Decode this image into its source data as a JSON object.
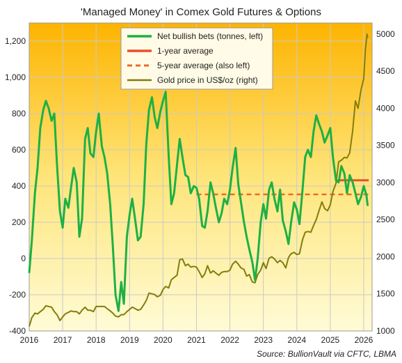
{
  "chart_data": {
    "type": "line",
    "title": "'Managed Money' in Comex Gold Futures & Options",
    "source": "Source: BullionVault via CFTC, LBMA",
    "x_ticks": [
      "2016",
      "2017",
      "2018",
      "2019",
      "2020",
      "2021",
      "2022",
      "2023",
      "2024",
      "2025",
      "2026"
    ],
    "xlim": [
      2016.0,
      2026.25
    ],
    "left_axis": {
      "ylim": [
        -400,
        1300
      ],
      "ticks": [
        -400,
        -200,
        0,
        200,
        400,
        600,
        800,
        1000,
        1200
      ],
      "tick_labels": [
        "-400",
        "-200",
        "0",
        "200",
        "400",
        "600",
        "800",
        "1,000",
        "1,200"
      ]
    },
    "right_axis": {
      "ylim": [
        1000,
        5150
      ],
      "ticks": [
        1000,
        1500,
        2000,
        2500,
        3000,
        3500,
        4000,
        4500,
        5000
      ],
      "tick_labels": [
        "1000",
        "1500",
        "2000",
        "2500",
        "3000",
        "3500",
        "4000",
        "4500",
        "5000"
      ]
    },
    "grid": true,
    "legend_position": "top-center",
    "series": [
      {
        "name": "Net bullish bets (tonnes, left)",
        "axis": "left",
        "color": "#1db044",
        "points": [
          [
            2016.0,
            -80
          ],
          [
            2016.08,
            100
          ],
          [
            2016.17,
            360
          ],
          [
            2016.25,
            500
          ],
          [
            2016.33,
            720
          ],
          [
            2016.42,
            820
          ],
          [
            2016.5,
            870
          ],
          [
            2016.58,
            830
          ],
          [
            2016.67,
            760
          ],
          [
            2016.75,
            800
          ],
          [
            2016.83,
            520
          ],
          [
            2016.92,
            260
          ],
          [
            2017.0,
            170
          ],
          [
            2017.08,
            330
          ],
          [
            2017.17,
            280
          ],
          [
            2017.25,
            390
          ],
          [
            2017.33,
            500
          ],
          [
            2017.42,
            420
          ],
          [
            2017.5,
            120
          ],
          [
            2017.58,
            220
          ],
          [
            2017.67,
            660
          ],
          [
            2017.75,
            720
          ],
          [
            2017.83,
            580
          ],
          [
            2017.92,
            560
          ],
          [
            2018.0,
            700
          ],
          [
            2018.08,
            800
          ],
          [
            2018.17,
            620
          ],
          [
            2018.25,
            560
          ],
          [
            2018.33,
            470
          ],
          [
            2018.42,
            300
          ],
          [
            2018.5,
            70
          ],
          [
            2018.58,
            -200
          ],
          [
            2018.67,
            -290
          ],
          [
            2018.75,
            -130
          ],
          [
            2018.83,
            -250
          ],
          [
            2018.92,
            120
          ],
          [
            2019.0,
            240
          ],
          [
            2019.08,
            330
          ],
          [
            2019.17,
            210
          ],
          [
            2019.25,
            100
          ],
          [
            2019.33,
            120
          ],
          [
            2019.42,
            300
          ],
          [
            2019.5,
            630
          ],
          [
            2019.58,
            820
          ],
          [
            2019.67,
            890
          ],
          [
            2019.75,
            780
          ],
          [
            2019.83,
            720
          ],
          [
            2019.92,
            810
          ],
          [
            2020.0,
            870
          ],
          [
            2020.08,
            920
          ],
          [
            2020.17,
            560
          ],
          [
            2020.25,
            300
          ],
          [
            2020.33,
            360
          ],
          [
            2020.42,
            520
          ],
          [
            2020.5,
            660
          ],
          [
            2020.58,
            560
          ],
          [
            2020.67,
            460
          ],
          [
            2020.75,
            450
          ],
          [
            2020.83,
            360
          ],
          [
            2020.92,
            400
          ],
          [
            2021.0,
            390
          ],
          [
            2021.08,
            330
          ],
          [
            2021.17,
            180
          ],
          [
            2021.25,
            170
          ],
          [
            2021.33,
            260
          ],
          [
            2021.42,
            420
          ],
          [
            2021.5,
            360
          ],
          [
            2021.58,
            280
          ],
          [
            2021.67,
            200
          ],
          [
            2021.75,
            250
          ],
          [
            2021.83,
            330
          ],
          [
            2021.92,
            300
          ],
          [
            2022.0,
            380
          ],
          [
            2022.08,
            500
          ],
          [
            2022.17,
            610
          ],
          [
            2022.25,
            410
          ],
          [
            2022.33,
            310
          ],
          [
            2022.42,
            200
          ],
          [
            2022.5,
            120
          ],
          [
            2022.58,
            50
          ],
          [
            2022.67,
            -20
          ],
          [
            2022.75,
            -120
          ],
          [
            2022.83,
            0
          ],
          [
            2022.92,
            200
          ],
          [
            2023.0,
            300
          ],
          [
            2023.08,
            220
          ],
          [
            2023.17,
            380
          ],
          [
            2023.25,
            420
          ],
          [
            2023.33,
            330
          ],
          [
            2023.42,
            260
          ],
          [
            2023.5,
            380
          ],
          [
            2023.58,
            210
          ],
          [
            2023.67,
            150
          ],
          [
            2023.75,
            80
          ],
          [
            2023.83,
            200
          ],
          [
            2023.92,
            310
          ],
          [
            2024.0,
            270
          ],
          [
            2024.08,
            190
          ],
          [
            2024.17,
            380
          ],
          [
            2024.25,
            560
          ],
          [
            2024.33,
            600
          ],
          [
            2024.42,
            560
          ],
          [
            2024.5,
            700
          ],
          [
            2024.58,
            790
          ],
          [
            2024.67,
            740
          ],
          [
            2024.75,
            700
          ],
          [
            2024.83,
            640
          ],
          [
            2024.92,
            680
          ],
          [
            2025.0,
            720
          ],
          [
            2025.08,
            560
          ],
          [
            2025.17,
            430
          ],
          [
            2025.25,
            420
          ],
          [
            2025.33,
            510
          ],
          [
            2025.42,
            470
          ],
          [
            2025.5,
            360
          ],
          [
            2025.58,
            460
          ],
          [
            2025.67,
            420
          ],
          [
            2025.75,
            360
          ],
          [
            2025.83,
            300
          ],
          [
            2025.92,
            340
          ],
          [
            2026.0,
            400
          ],
          [
            2026.08,
            350
          ],
          [
            2026.12,
            290
          ]
        ]
      },
      {
        "name": "1-year average",
        "axis": "left",
        "color": "#e8502a",
        "points": [
          [
            2025.15,
            432
          ],
          [
            2026.15,
            432
          ]
        ]
      },
      {
        "name": "5-year average (also left)",
        "axis": "left",
        "color": "#ee6a24",
        "points": [
          [
            2021.0,
            354
          ],
          [
            2026.15,
            354
          ]
        ]
      },
      {
        "name": "Gold price in US$/oz (right)",
        "axis": "right",
        "color": "#827d0b",
        "points": [
          [
            2016.0,
            1060
          ],
          [
            2016.08,
            1180
          ],
          [
            2016.17,
            1240
          ],
          [
            2016.25,
            1230
          ],
          [
            2016.33,
            1260
          ],
          [
            2016.42,
            1290
          ],
          [
            2016.5,
            1340
          ],
          [
            2016.58,
            1330
          ],
          [
            2016.67,
            1320
          ],
          [
            2016.75,
            1260
          ],
          [
            2016.83,
            1220
          ],
          [
            2016.92,
            1140
          ],
          [
            2017.0,
            1190
          ],
          [
            2017.08,
            1230
          ],
          [
            2017.17,
            1250
          ],
          [
            2017.25,
            1270
          ],
          [
            2017.33,
            1260
          ],
          [
            2017.42,
            1260
          ],
          [
            2017.5,
            1230
          ],
          [
            2017.58,
            1280
          ],
          [
            2017.67,
            1320
          ],
          [
            2017.75,
            1280
          ],
          [
            2017.83,
            1280
          ],
          [
            2017.92,
            1260
          ],
          [
            2018.0,
            1330
          ],
          [
            2018.08,
            1330
          ],
          [
            2018.17,
            1330
          ],
          [
            2018.25,
            1330
          ],
          [
            2018.33,
            1300
          ],
          [
            2018.42,
            1270
          ],
          [
            2018.5,
            1240
          ],
          [
            2018.58,
            1200
          ],
          [
            2018.67,
            1190
          ],
          [
            2018.75,
            1220
          ],
          [
            2018.83,
            1220
          ],
          [
            2018.92,
            1260
          ],
          [
            2019.0,
            1290
          ],
          [
            2019.08,
            1320
          ],
          [
            2019.17,
            1300
          ],
          [
            2019.25,
            1280
          ],
          [
            2019.33,
            1290
          ],
          [
            2019.42,
            1350
          ],
          [
            2019.5,
            1410
          ],
          [
            2019.58,
            1510
          ],
          [
            2019.67,
            1500
          ],
          [
            2019.75,
            1490
          ],
          [
            2019.83,
            1460
          ],
          [
            2019.92,
            1480
          ],
          [
            2020.0,
            1560
          ],
          [
            2020.08,
            1600
          ],
          [
            2020.17,
            1580
          ],
          [
            2020.25,
            1690
          ],
          [
            2020.33,
            1720
          ],
          [
            2020.42,
            1750
          ],
          [
            2020.5,
            1960
          ],
          [
            2020.58,
            1970
          ],
          [
            2020.67,
            1880
          ],
          [
            2020.75,
            1900
          ],
          [
            2020.83,
            1860
          ],
          [
            2020.92,
            1870
          ],
          [
            2021.0,
            1860
          ],
          [
            2021.08,
            1800
          ],
          [
            2021.17,
            1720
          ],
          [
            2021.25,
            1770
          ],
          [
            2021.33,
            1880
          ],
          [
            2021.42,
            1780
          ],
          [
            2021.5,
            1810
          ],
          [
            2021.58,
            1780
          ],
          [
            2021.67,
            1750
          ],
          [
            2021.75,
            1790
          ],
          [
            2021.83,
            1800
          ],
          [
            2021.92,
            1800
          ],
          [
            2022.0,
            1820
          ],
          [
            2022.08,
            1900
          ],
          [
            2022.17,
            1940
          ],
          [
            2022.25,
            1900
          ],
          [
            2022.33,
            1850
          ],
          [
            2022.42,
            1830
          ],
          [
            2022.5,
            1740
          ],
          [
            2022.58,
            1760
          ],
          [
            2022.67,
            1660
          ],
          [
            2022.75,
            1650
          ],
          [
            2022.83,
            1760
          ],
          [
            2022.92,
            1820
          ],
          [
            2023.0,
            1920
          ],
          [
            2023.08,
            1840
          ],
          [
            2023.17,
            1980
          ],
          [
            2023.25,
            2000
          ],
          [
            2023.33,
            1970
          ],
          [
            2023.42,
            1920
          ],
          [
            2023.5,
            1950
          ],
          [
            2023.58,
            1920
          ],
          [
            2023.67,
            1850
          ],
          [
            2023.75,
            1990
          ],
          [
            2023.83,
            2040
          ],
          [
            2023.92,
            2060
          ],
          [
            2024.0,
            2030
          ],
          [
            2024.08,
            2040
          ],
          [
            2024.17,
            2230
          ],
          [
            2024.25,
            2330
          ],
          [
            2024.33,
            2340
          ],
          [
            2024.42,
            2330
          ],
          [
            2024.5,
            2420
          ],
          [
            2024.58,
            2500
          ],
          [
            2024.67,
            2630
          ],
          [
            2024.75,
            2740
          ],
          [
            2024.83,
            2650
          ],
          [
            2024.92,
            2620
          ],
          [
            2025.0,
            2700
          ],
          [
            2025.08,
            2880
          ],
          [
            2025.17,
            2990
          ],
          [
            2025.25,
            3280
          ],
          [
            2025.33,
            3300
          ],
          [
            2025.42,
            3340
          ],
          [
            2025.5,
            3330
          ],
          [
            2025.58,
            3400
          ],
          [
            2025.67,
            3700
          ],
          [
            2025.75,
            4100
          ],
          [
            2025.83,
            4000
          ],
          [
            2025.92,
            4250
          ],
          [
            2026.0,
            4400
          ],
          [
            2026.05,
            4800
          ],
          [
            2026.1,
            5000
          ],
          [
            2026.12,
            4950
          ]
        ]
      }
    ]
  }
}
